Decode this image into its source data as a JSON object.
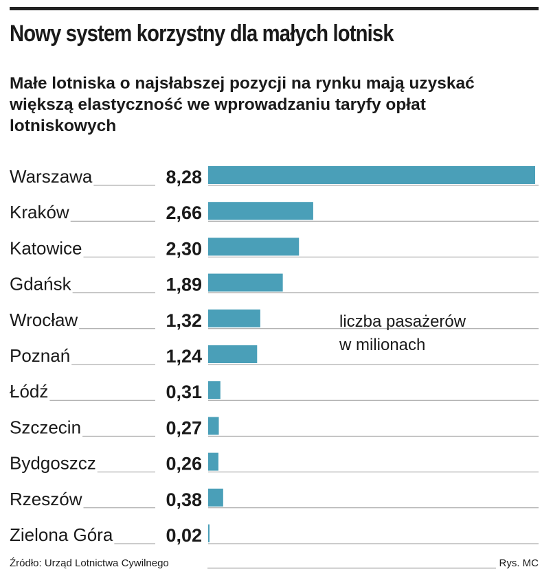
{
  "title": "Nowy system korzystny dla małych lotnisk",
  "subtitle": "Małe lotniska o najsłabszej pozycji na rynku mają uzyskać większą elastyczność we wprowadzaniu taryfy opłat lotniskowych",
  "note_line1": "liczba pasażerów",
  "note_line2": "w milionach",
  "source": "Źródło: Urząd Lotnictwa Cywilnego",
  "credit": "Rys. MC",
  "colors": {
    "bar": "#4a9fb8",
    "leader": "#9a9a9a",
    "rule": "#222222"
  },
  "chart_data": {
    "type": "bar",
    "orientation": "horizontal",
    "title": "Nowy system korzystny dla małych lotnisk",
    "unit": "liczba pasażerów w milionach",
    "categories": [
      "Warszawa",
      "Kraków",
      "Katowice",
      "Gdańsk",
      "Wrocław",
      "Poznań",
      "Łódź",
      "Szczecin",
      "Bydgoszcz",
      "Rzeszów",
      "Zielona Góra"
    ],
    "values": [
      8.28,
      2.66,
      2.3,
      1.89,
      1.32,
      1.24,
      0.31,
      0.27,
      0.26,
      0.38,
      0.02
    ],
    "value_labels": [
      "8,28",
      "2,66",
      "2,30",
      "1,89",
      "1,32",
      "1,24",
      "0,31",
      "0,27",
      "0,26",
      "0,38",
      "0,02"
    ],
    "xlim": [
      0,
      8.28
    ]
  }
}
